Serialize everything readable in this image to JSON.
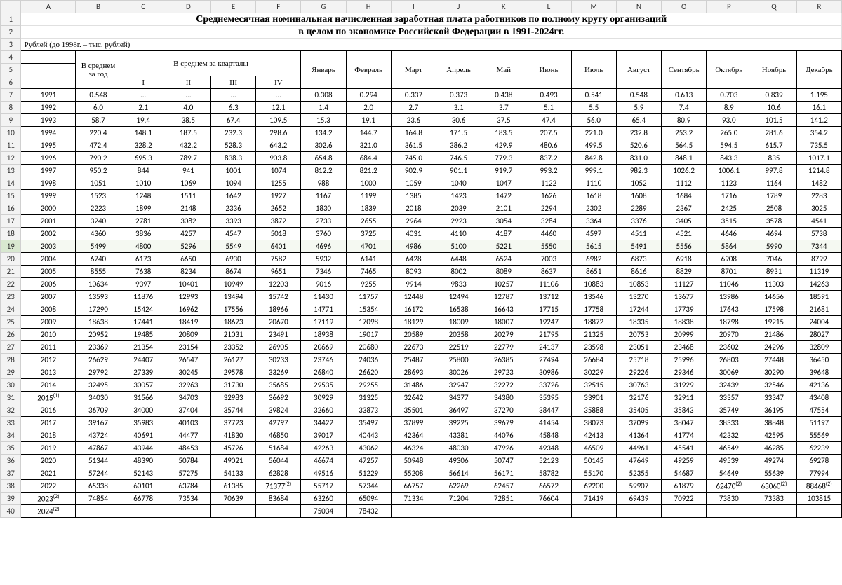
{
  "columns": [
    "A",
    "B",
    "C",
    "D",
    "E",
    "F",
    "G",
    "H",
    "I",
    "J",
    "K",
    "L",
    "M",
    "N",
    "O",
    "P",
    "Q",
    "R"
  ],
  "title1": "Среднемесячная номинальная начисленная заработная плата работников по полному кругу организаций",
  "title2": "в целом по экономике Российской Федерации в 1991-2024гг.",
  "subhead": "Рублей (до 1998г. – тыс. рублей)",
  "header_year_avg": "В среднем за год",
  "header_quarter_avg": "В среднем за кварталы",
  "quarters": [
    "I",
    "II",
    "III",
    "IV"
  ],
  "months": [
    "Январь",
    "Февраль",
    "Март",
    "Апрель",
    "Май",
    "Июнь",
    "Июль",
    "Август",
    "Сентябрь",
    "Октябрь",
    "Ноябрь",
    "Декабрь"
  ],
  "selected_row_index": 12,
  "rows": [
    {
      "n": 7,
      "y": "1991",
      "a": "0.548",
      "q": [
        "…",
        "…",
        "…",
        "…"
      ],
      "m": [
        "0.308",
        "0.294",
        "0.337",
        "0.373",
        "0.438",
        "0.493",
        "0.541",
        "0.548",
        "0.613",
        "0.703",
        "0.839",
        "1.195"
      ]
    },
    {
      "n": 8,
      "y": "1992",
      "a": "6.0",
      "q": [
        "2.1",
        "4.0",
        "6.3",
        "12.1"
      ],
      "m": [
        "1.4",
        "2.0",
        "2.7",
        "3.1",
        "3.7",
        "5.1",
        "5.5",
        "5.9",
        "7.4",
        "8.9",
        "10.6",
        "16.1"
      ]
    },
    {
      "n": 9,
      "y": "1993",
      "a": "58.7",
      "q": [
        "19.4",
        "38.5",
        "67.4",
        "109.5"
      ],
      "m": [
        "15.3",
        "19.1",
        "23.6",
        "30.6",
        "37.5",
        "47.4",
        "56.0",
        "65.4",
        "80.9",
        "93.0",
        "101.5",
        "141.2"
      ]
    },
    {
      "n": 10,
      "y": "1994",
      "a": "220.4",
      "q": [
        "148.1",
        "187.5",
        "232.3",
        "298.6"
      ],
      "m": [
        "134.2",
        "144.7",
        "164.8",
        "171.5",
        "183.5",
        "207.5",
        "221.0",
        "232.8",
        "253.2",
        "265.0",
        "281.6",
        "354.2"
      ]
    },
    {
      "n": 11,
      "y": "1995",
      "a": "472.4",
      "q": [
        "328.2",
        "432.2",
        "528.3",
        "643.2"
      ],
      "m": [
        "302.6",
        "321.0",
        "361.5",
        "386.2",
        "429.9",
        "480.6",
        "499.5",
        "520.6",
        "564.5",
        "594.5",
        "615.7",
        "735.5"
      ]
    },
    {
      "n": 12,
      "y": "1996",
      "a": "790.2",
      "q": [
        "695.3",
        "789.7",
        "838.3",
        "903.8"
      ],
      "m": [
        "654.8",
        "684.4",
        "745.0",
        "746.5",
        "779.3",
        "837.2",
        "842.8",
        "831.0",
        "848.1",
        "843.3",
        "835",
        "1017.1"
      ]
    },
    {
      "n": 13,
      "y": "1997",
      "a": "950.2",
      "q": [
        "844",
        "941",
        "1001",
        "1074"
      ],
      "m": [
        "812.2",
        "821.2",
        "902.9",
        "901.1",
        "919.7",
        "993.2",
        "999.1",
        "982.3",
        "1026.2",
        "1006.1",
        "997.8",
        "1214.8"
      ]
    },
    {
      "n": 14,
      "y": "1998",
      "a": "1051",
      "q": [
        "1010",
        "1069",
        "1094",
        "1255"
      ],
      "m": [
        "988",
        "1000",
        "1059",
        "1040",
        "1047",
        "1122",
        "1110",
        "1052",
        "1112",
        "1123",
        "1164",
        "1482"
      ]
    },
    {
      "n": 15,
      "y": "1999",
      "a": "1523",
      "q": [
        "1248",
        "1511",
        "1642",
        "1927"
      ],
      "m": [
        "1167",
        "1199",
        "1385",
        "1423",
        "1472",
        "1626",
        "1618",
        "1608",
        "1684",
        "1716",
        "1789",
        "2283"
      ]
    },
    {
      "n": 16,
      "y": "2000",
      "a": "2223",
      "q": [
        "1899",
        "2148",
        "2336",
        "2652"
      ],
      "m": [
        "1830",
        "1839",
        "2018",
        "2039",
        "2101",
        "2294",
        "2302",
        "2289",
        "2367",
        "2425",
        "2508",
        "3025"
      ]
    },
    {
      "n": 17,
      "y": "2001",
      "a": "3240",
      "q": [
        "2781",
        "3082",
        "3393",
        "3872"
      ],
      "m": [
        "2733",
        "2655",
        "2964",
        "2923",
        "3054",
        "3284",
        "3364",
        "3376",
        "3405",
        "3515",
        "3578",
        "4541"
      ]
    },
    {
      "n": 18,
      "y": "2002",
      "a": "4360",
      "q": [
        "3836",
        "4257",
        "4547",
        "5018"
      ],
      "m": [
        "3760",
        "3725",
        "4031",
        "4110",
        "4187",
        "4460",
        "4597",
        "4511",
        "4521",
        "4646",
        "4694",
        "5738"
      ]
    },
    {
      "n": 19,
      "y": "2003",
      "a": "5499",
      "q": [
        "4800",
        "5296",
        "5549",
        "6401"
      ],
      "m": [
        "4696",
        "4701",
        "4986",
        "5100",
        "5221",
        "5550",
        "5615",
        "5491",
        "5556",
        "5864",
        "5990",
        "7344"
      ]
    },
    {
      "n": 20,
      "y": "2004",
      "a": "6740",
      "q": [
        "6173",
        "6650",
        "6930",
        "7582"
      ],
      "m": [
        "5932",
        "6141",
        "6428",
        "6448",
        "6524",
        "7003",
        "6982",
        "6873",
        "6918",
        "6908",
        "7046",
        "8799"
      ]
    },
    {
      "n": 21,
      "y": "2005",
      "a": "8555",
      "q": [
        "7638",
        "8234",
        "8674",
        "9651"
      ],
      "m": [
        "7346",
        "7465",
        "8093",
        "8002",
        "8089",
        "8637",
        "8651",
        "8616",
        "8829",
        "8701",
        "8931",
        "11319"
      ]
    },
    {
      "n": 22,
      "y": "2006",
      "a": "10634",
      "q": [
        "9397",
        "10401",
        "10949",
        "12203"
      ],
      "m": [
        "9016",
        "9255",
        "9914",
        "9833",
        "10257",
        "11106",
        "10883",
        "10853",
        "11127",
        "11046",
        "11303",
        "14263"
      ]
    },
    {
      "n": 23,
      "y": "2007",
      "a": "13593",
      "q": [
        "11876",
        "12993",
        "13494",
        "15742"
      ],
      "m": [
        "11430",
        "11757",
        "12448",
        "12494",
        "12787",
        "13712",
        "13546",
        "13270",
        "13677",
        "13986",
        "14656",
        "18591"
      ]
    },
    {
      "n": 24,
      "y": "2008",
      "a": "17290",
      "q": [
        "15424",
        "16962",
        "17556",
        "18966"
      ],
      "m": [
        "14771",
        "15354",
        "16172",
        "16538",
        "16643",
        "17715",
        "17758",
        "17244",
        "17739",
        "17643",
        "17598",
        "21681"
      ]
    },
    {
      "n": 25,
      "y": "2009",
      "a": "18638",
      "q": [
        "17441",
        "18419",
        "18673",
        "20670"
      ],
      "m": [
        "17119",
        "17098",
        "18129",
        "18009",
        "18007",
        "19247",
        "18872",
        "18335",
        "18838",
        "18798",
        "19215",
        "24004"
      ]
    },
    {
      "n": 26,
      "y": "2010",
      "a": "20952",
      "q": [
        "19485",
        "20809",
        "21031",
        "23491"
      ],
      "m": [
        "18938",
        "19017",
        "20589",
        "20358",
        "20279",
        "21795",
        "21325",
        "20753",
        "20999",
        "20970",
        "21486",
        "28027"
      ]
    },
    {
      "n": 27,
      "y": "2011",
      "a": "23369",
      "q": [
        "21354",
        "23154",
        "23352",
        "26905"
      ],
      "m": [
        "20669",
        "20680",
        "22673",
        "22519",
        "22779",
        "24137",
        "23598",
        "23051",
        "23468",
        "23602",
        "24296",
        "32809"
      ]
    },
    {
      "n": 28,
      "y": "2012",
      "a": "26629",
      "q": [
        "24407",
        "26547",
        "26127",
        "30233"
      ],
      "m": [
        "23746",
        "24036",
        "25487",
        "25800",
        "26385",
        "27494",
        "26684",
        "25718",
        "25996",
        "26803",
        "27448",
        "36450"
      ]
    },
    {
      "n": 29,
      "y": "2013",
      "a": "29792",
      "q": [
        "27339",
        "30245",
        "29578",
        "33269"
      ],
      "m": [
        "26840",
        "26620",
        "28693",
        "30026",
        "29723",
        "30986",
        "30229",
        "29226",
        "29346",
        "30069",
        "30290",
        "39648"
      ]
    },
    {
      "n": 30,
      "y": "2014",
      "a": "32495",
      "q": [
        "30057",
        "32963",
        "31730",
        "35685"
      ],
      "m": [
        "29535",
        "29255",
        "31486",
        "32947",
        "32272",
        "33726",
        "32515",
        "30763",
        "31929",
        "32439",
        "32546",
        "42136"
      ]
    },
    {
      "n": 31,
      "y": "2015",
      "sup": "(1)",
      "a": "34030",
      "q": [
        "31566",
        "34703",
        "32983",
        "36692"
      ],
      "m": [
        "30929",
        "31325",
        "32642",
        "34377",
        "34380",
        "35395",
        "33901",
        "32176",
        "32911",
        "33357",
        "33347",
        "43408"
      ]
    },
    {
      "n": 32,
      "y": "2016",
      "a": "36709",
      "q": [
        "34000",
        "37404",
        "35744",
        "39824"
      ],
      "m": [
        "32660",
        "33873",
        "35501",
        "36497",
        "37270",
        "38447",
        "35888",
        "35405",
        "35843",
        "35749",
        "36195",
        "47554"
      ]
    },
    {
      "n": 33,
      "y": "2017",
      "a": "39167",
      "q": [
        "35983",
        "40103",
        "37723",
        "42797"
      ],
      "m": [
        "34422",
        "35497",
        "37899",
        "39225",
        "39679",
        "41454",
        "38073",
        "37099",
        "38047",
        "38333",
        "38848",
        "51197"
      ]
    },
    {
      "n": 34,
      "y": "2018",
      "a": "43724",
      "q": [
        "40691",
        "44477",
        "41830",
        "46850"
      ],
      "m": [
        "39017",
        "40443",
        "42364",
        "43381",
        "44076",
        "45848",
        "42413",
        "41364",
        "41774",
        "42332",
        "42595",
        "55569"
      ]
    },
    {
      "n": 35,
      "y": "2019",
      "a": "47867",
      "q": [
        "43944",
        "48453",
        "45726",
        "51684"
      ],
      "m": [
        "42263",
        "43062",
        "46324",
        "48030",
        "47926",
        "49348",
        "46509",
        "44961",
        "45541",
        "46549",
        "46285",
        "62239"
      ]
    },
    {
      "n": 36,
      "y": "2020",
      "a": "51344",
      "q": [
        "48390",
        "50784",
        "49021",
        "56044"
      ],
      "m": [
        "46674",
        "47257",
        "50948",
        "49306",
        "50747",
        "52123",
        "50145",
        "47649",
        "49259",
        "49539",
        "49274",
        "69278"
      ]
    },
    {
      "n": 37,
      "y": "2021",
      "a": "57244",
      "q": [
        "52143",
        "57275",
        "54133",
        "62828"
      ],
      "m": [
        "49516",
        "51229",
        "55208",
        "56614",
        "56171",
        "58782",
        "55170",
        "52355",
        "54687",
        "54649",
        "55639",
        "77994"
      ]
    },
    {
      "n": 38,
      "y": "2022",
      "a": "65338",
      "q": [
        "60101",
        "63784",
        "61385",
        "71377"
      ],
      "qsup": [
        "",
        "",
        "",
        "(2)"
      ],
      "m": [
        "55717",
        "57344",
        "66757",
        "62269",
        "62457",
        "66572",
        "62200",
        "59907",
        "61879",
        "62470",
        "63060",
        "88468"
      ],
      "msup": [
        "",
        "",
        "",
        "",
        "",
        "",
        "",
        "",
        "",
        "(2)",
        "(2)",
        "(2)"
      ]
    },
    {
      "n": 39,
      "y": "2023",
      "sup": "(2)",
      "a": "74854",
      "q": [
        "66778",
        "73534",
        "70639",
        "83684"
      ],
      "m": [
        "63260",
        "65094",
        "71334",
        "71204",
        "72851",
        "76604",
        "71419",
        "69439",
        "70922",
        "73830",
        "73383",
        "103815"
      ]
    },
    {
      "n": 40,
      "y": "2024",
      "sup": "(2)",
      "a": "",
      "q": [
        "",
        "",
        "",
        ""
      ],
      "m": [
        "75034",
        "78432",
        "",
        "",
        "",
        "",
        "",
        "",
        "",
        "",
        "",
        ""
      ]
    }
  ],
  "style": {
    "bg": "#ffffff",
    "grid": "#e0e0e0",
    "hdr_bg": "#f3f3f3",
    "hdr_border": "#d0d0d0",
    "data_border": "#000000",
    "sel_rownum_bg": "#d8e8d0",
    "sel_row_bg": "#f5f9f2",
    "title_font": "Times New Roman",
    "body_font": "Calibri",
    "title_size_pt": 14,
    "cell_size_pt": 11
  }
}
